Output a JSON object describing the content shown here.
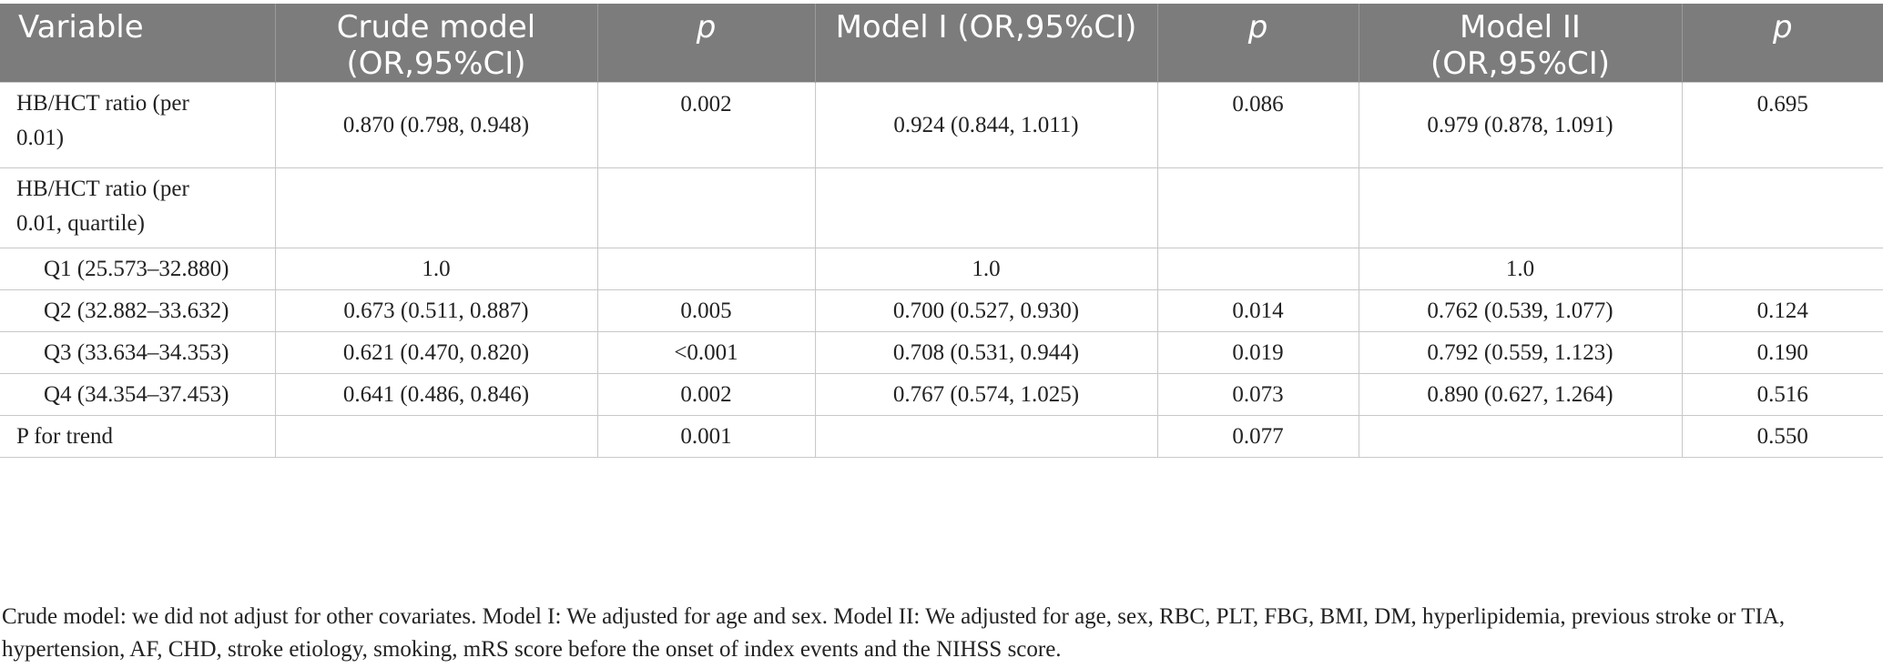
{
  "headers": [
    {
      "label": "Variable",
      "italic": false
    },
    {
      "label": "Crude model\n(OR,95%CI)",
      "italic": false
    },
    {
      "label": "p",
      "italic": true
    },
    {
      "label": "Model I (OR,95%CI)",
      "italic": false
    },
    {
      "label": "p",
      "italic": true
    },
    {
      "label": "Model II\n(OR,95%CI)",
      "italic": false
    },
    {
      "label": "p",
      "italic": true
    }
  ],
  "rows": [
    {
      "variable": "HB/HCT ratio (per\n0.01)",
      "crude": "0.870 (0.798, 0.948)",
      "p1": "0.002",
      "m1": "0.924 (0.844, 1.011)",
      "p2": "0.086",
      "m2": "0.979 (0.878, 1.091)",
      "p3": "0.695"
    },
    {
      "variable": "HB/HCT ratio (per\n0.01, quartile)",
      "crude": "",
      "p1": "",
      "m1": "",
      "p2": "",
      "m2": "",
      "p3": ""
    },
    {
      "variable": "Q1 (25.573–32.880)",
      "crude": "1.0",
      "p1": "",
      "m1": "1.0",
      "p2": "",
      "m2": "1.0",
      "p3": ""
    },
    {
      "variable": "Q2 (32.882–33.632)",
      "crude": "0.673 (0.511, 0.887)",
      "p1": "0.005",
      "m1": "0.700 (0.527, 0.930)",
      "p2": "0.014",
      "m2": "0.762 (0.539, 1.077)",
      "p3": "0.124"
    },
    {
      "variable": "Q3 (33.634–34.353)",
      "crude": "0.621 (0.470, 0.820)",
      "p1": "<0.001",
      "m1": "0.708 (0.531, 0.944)",
      "p2": "0.019",
      "m2": "0.792 (0.559, 1.123)",
      "p3": "0.190"
    },
    {
      "variable": "Q4 (34.354–37.453)",
      "crude": "0.641 (0.486, 0.846)",
      "p1": "0.002",
      "m1": "0.767 (0.574, 1.025)",
      "p2": "0.073",
      "m2": "0.890 (0.627, 1.264)",
      "p3": "0.516"
    },
    {
      "variable": "P for trend",
      "crude": "",
      "p1": "0.001",
      "m1": "",
      "p2": "0.077",
      "m2": "",
      "p3": "0.550"
    }
  ],
  "footnote": "Crude model: we did not adjust for other covariates. Model I: We adjusted for age and sex. Model II: We adjusted for age, sex, RBC, PLT, FBG, BMI, DM, hyperlipidemia, previous stroke or TIA, hypertension, AF, CHD, stroke etiology, smoking, mRS score before the onset of index events and the NIHSS score."
}
